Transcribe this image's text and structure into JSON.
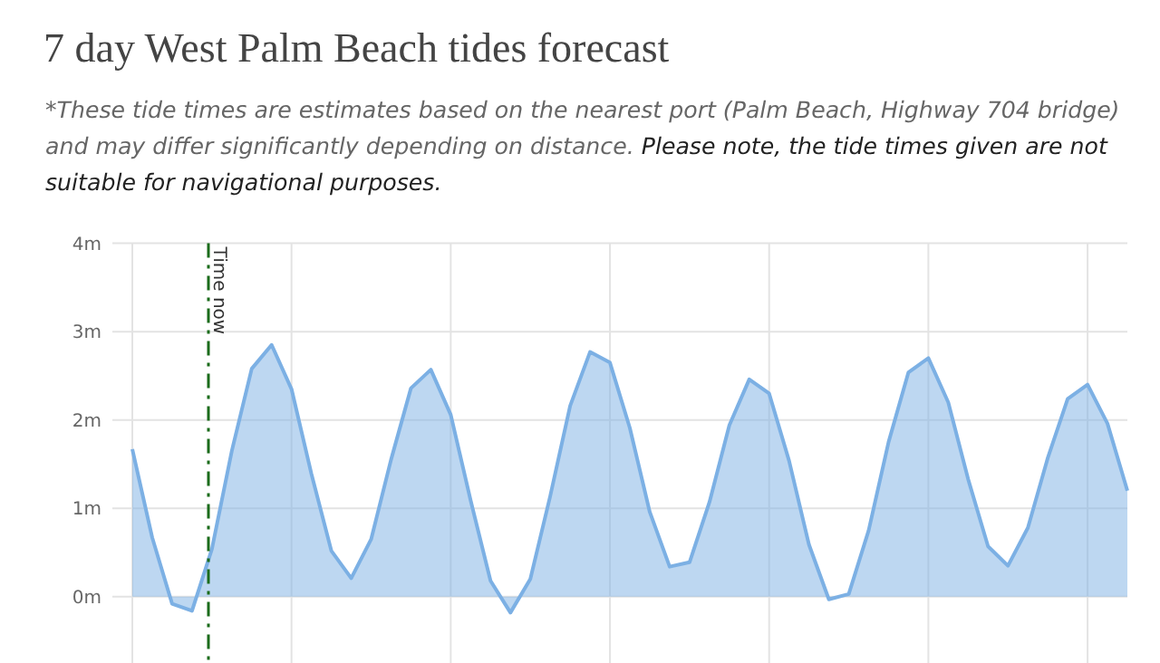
{
  "chart_data": {
    "type": "area",
    "title": "7 day West Palm Beach tides forecast",
    "subtitle": "*These tide times are estimates based on the nearest port (Palm Beach, Highway 704 bridge) and may differ significantly depending on distance.",
    "annotations": [
      "Please note, the tide times given are not suitable for navigational purposes.",
      "Time now"
    ],
    "categories": [
      null,
      null,
      null,
      null,
      null,
      null,
      null,
      null,
      null,
      null,
      null,
      null,
      null,
      null,
      null,
      null,
      null,
      null,
      null,
      null,
      null,
      null,
      null,
      null,
      null,
      null,
      null,
      null,
      null,
      null,
      null,
      null,
      null,
      null,
      null,
      null,
      null,
      null,
      null,
      null,
      null,
      null,
      null,
      null,
      null,
      null,
      null,
      null,
      null,
      null,
      null
    ],
    "series": [
      {
        "color": "#7cb0e4",
        "values": [
          1.67,
          0.67,
          -0.08,
          -0.16,
          0.54,
          1.65,
          2.58,
          2.85,
          2.35,
          1.39,
          0.52,
          0.21,
          0.65,
          1.55,
          2.36,
          2.57,
          2.06,
          1.09,
          0.18,
          -0.18,
          0.2,
          1.14,
          2.16,
          2.77,
          2.65,
          1.91,
          0.96,
          0.34,
          0.39,
          1.07,
          1.94,
          2.46,
          2.3,
          1.54,
          0.59,
          -0.03,
          0.03,
          0.75,
          1.75,
          2.54,
          2.7,
          2.2,
          1.33,
          0.57,
          0.35,
          0.78,
          1.57,
          2.24,
          2.4,
          1.96,
          1.2
        ]
      }
    ],
    "ylim": [
      -0.75,
      4
    ],
    "yticks": [
      {
        "value": 0,
        "label": "0m"
      },
      {
        "value": 1,
        "label": "1m"
      },
      {
        "value": 2,
        "label": "2m"
      },
      {
        "value": 3,
        "label": "3m"
      },
      {
        "value": 4,
        "label": "4m"
      }
    ],
    "grid": true
  }
}
